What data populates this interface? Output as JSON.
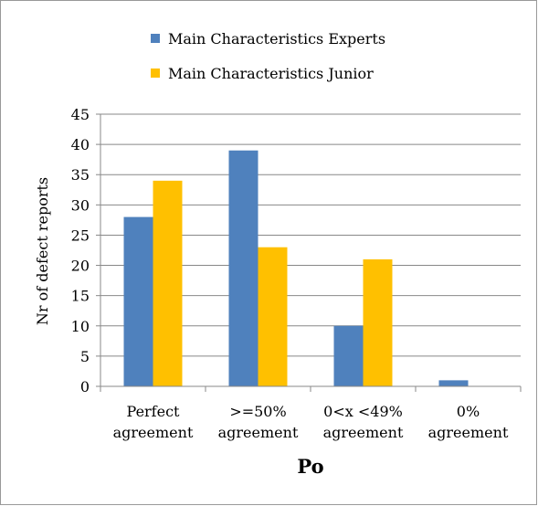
{
  "chart_data": {
    "type": "bar",
    "categories": [
      "Perfect agreement",
      ">=50% agreement",
      "0<x <49% agreement",
      "0% agreement"
    ],
    "series": [
      {
        "name": "Main Characteristics Experts",
        "color": "#4f81bd",
        "values": [
          28,
          39,
          10,
          1
        ]
      },
      {
        "name": "Main Characteristics Junior",
        "color": "#ffc000",
        "values": [
          34,
          23,
          21,
          0
        ]
      }
    ],
    "x_label": "Po",
    "y_label": "Nr of defect reports",
    "ylim": [
      0,
      45
    ],
    "yticks": [
      0,
      5,
      10,
      15,
      20,
      25,
      30,
      35,
      40,
      45
    ],
    "grid": true,
    "legend": "top"
  }
}
